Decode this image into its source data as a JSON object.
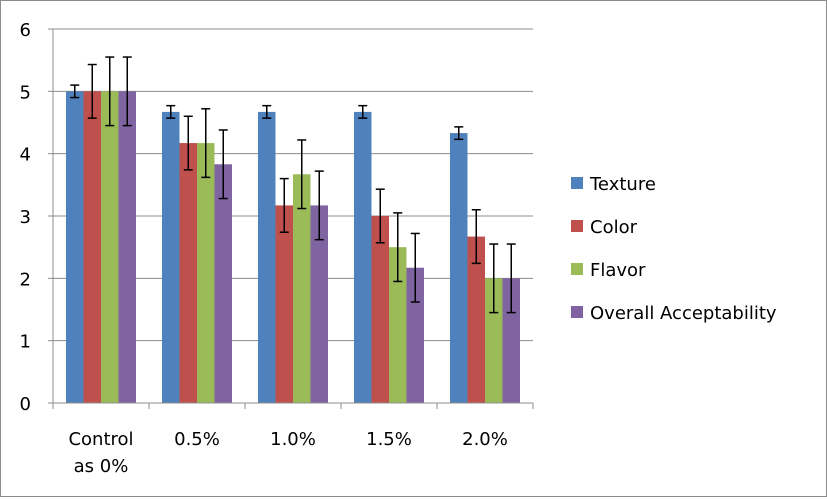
{
  "chart_data": {
    "type": "bar",
    "title": "",
    "xlabel": "",
    "ylabel": "",
    "categories": [
      "Control as 0%",
      "0.5%",
      "1.0%",
      "1.5%",
      "2.0%"
    ],
    "category_lines": [
      [
        "Control",
        "as 0%"
      ],
      [
        "0.5%"
      ],
      [
        "1.0%"
      ],
      [
        "1.5%"
      ],
      [
        "2.0%"
      ]
    ],
    "ylim": [
      0,
      6
    ],
    "yticks": [
      "0",
      "1",
      "2",
      "3",
      "4",
      "5",
      "6"
    ],
    "grid": "horizontal",
    "legend_position": "right",
    "series": [
      {
        "name": "Texture",
        "color": "#4f81bd",
        "values": [
          5.0,
          4.67,
          4.67,
          4.67,
          4.33
        ],
        "errors": [
          0.1,
          0.1,
          0.1,
          0.1,
          0.1
        ]
      },
      {
        "name": "Color",
        "color": "#c0504d",
        "values": [
          5.0,
          4.17,
          3.17,
          3.0,
          2.67
        ],
        "errors": [
          0.43,
          0.43,
          0.43,
          0.43,
          0.43
        ]
      },
      {
        "name": "Flavor",
        "color": "#9bbb59",
        "values": [
          5.0,
          4.17,
          3.67,
          2.5,
          2.0
        ],
        "errors": [
          0.55,
          0.55,
          0.55,
          0.55,
          0.55
        ]
      },
      {
        "name": "Overall Acceptability",
        "color": "#8064a2",
        "values": [
          5.0,
          3.83,
          3.17,
          2.17,
          2.0
        ],
        "errors": [
          0.55,
          0.55,
          0.55,
          0.55,
          0.55
        ]
      }
    ]
  }
}
